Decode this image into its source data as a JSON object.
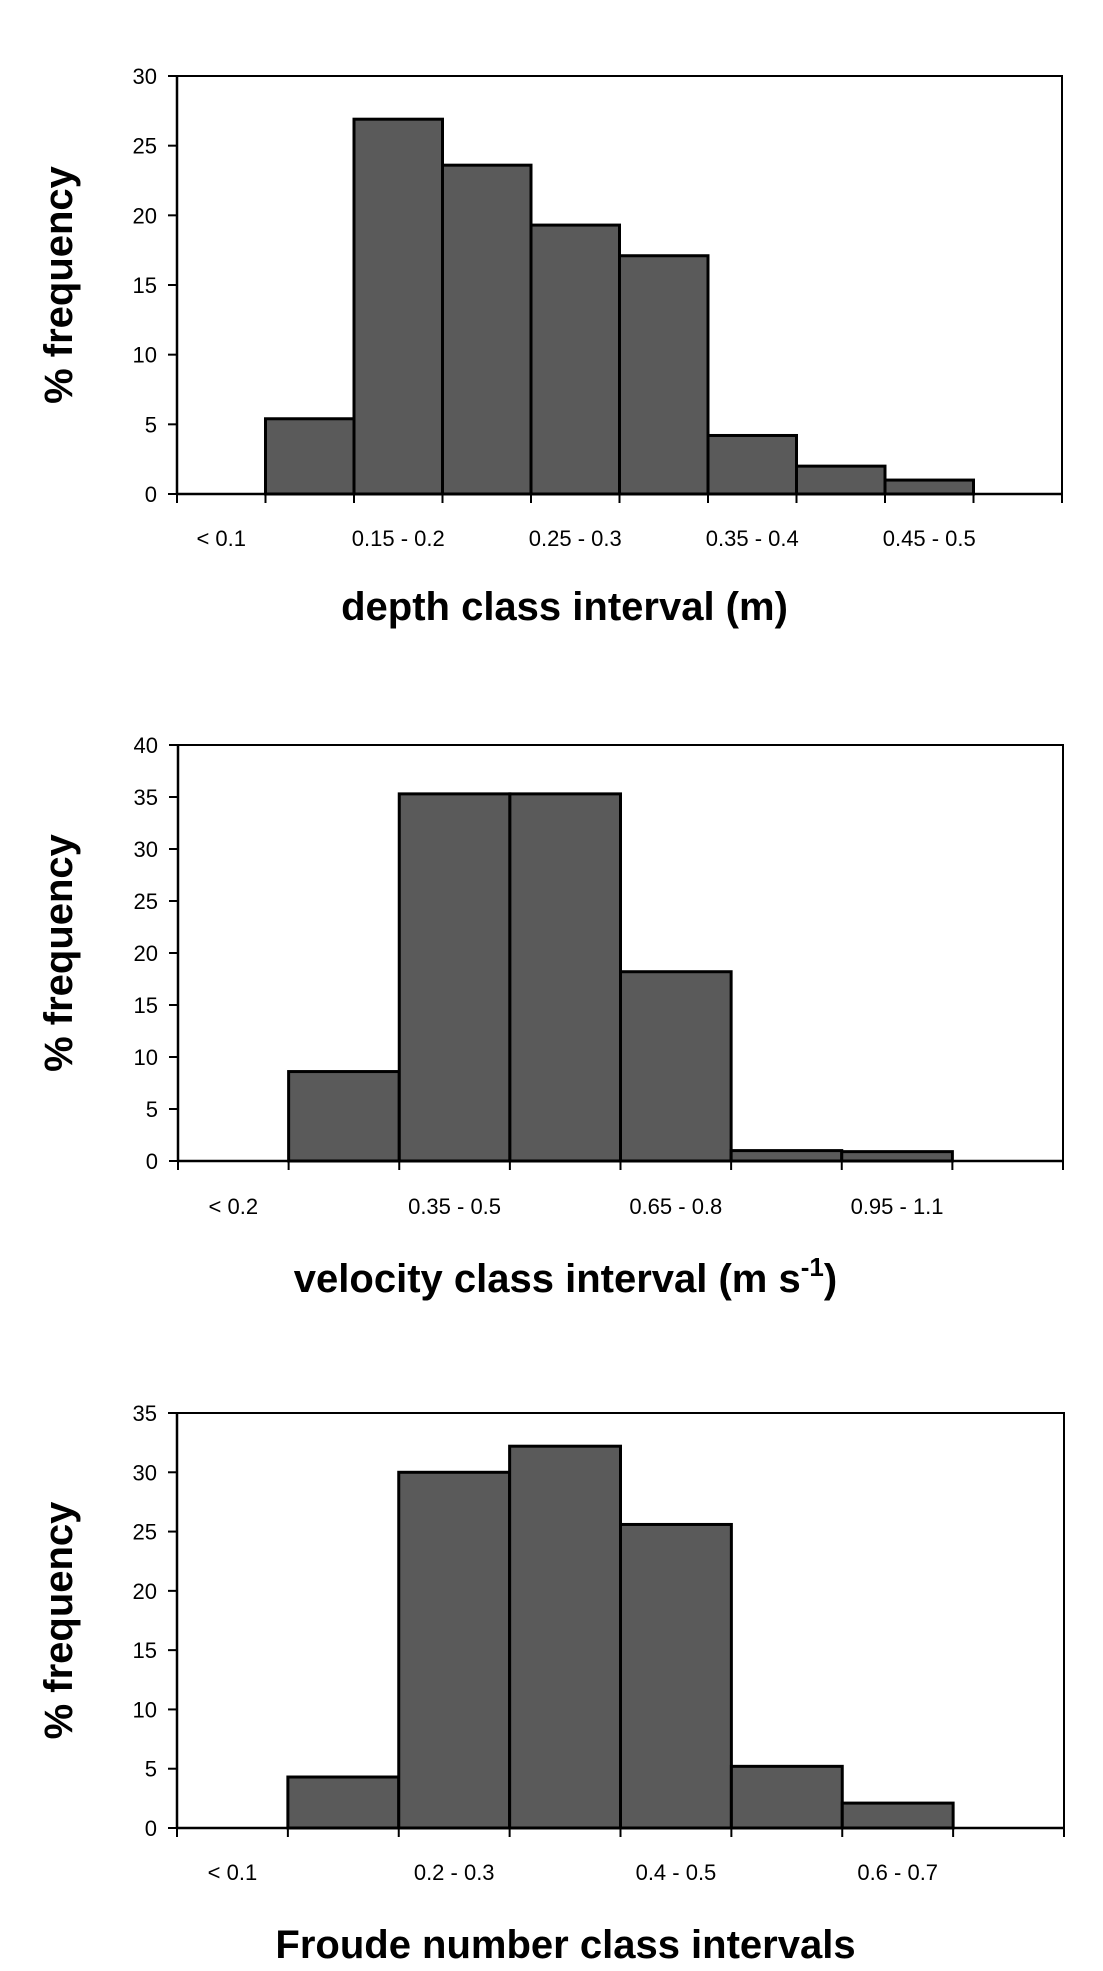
{
  "chart_data": [
    {
      "type": "bar",
      "categories": [
        "< 0.1",
        "0.1 - 0.15",
        "0.15 - 0.2",
        "0.2 - 0.25",
        "0.25 - 0.3",
        "0.3 - 0.35",
        "0.35 - 0.4",
        "0.4 - 0.45",
        "0.45 - 0.5"
      ],
      "tick_labels": [
        "< 0.1",
        "",
        "0.15 - 0.2",
        "",
        "0.25 - 0.3",
        "",
        "0.35 - 0.4",
        "",
        "0.45 - 0.5"
      ],
      "values": [
        0,
        5.4,
        26.9,
        23.6,
        19.3,
        17.1,
        4.2,
        2.0,
        1.0
      ],
      "title": "",
      "xlabel": "depth class interval (m)",
      "ylabel": "% frequency",
      "ylim": [
        0,
        30
      ],
      "yticks": [
        0,
        5,
        10,
        15,
        20,
        25,
        30
      ],
      "grid": false,
      "bar_color": "#5a5a5a"
    },
    {
      "type": "bar",
      "categories": [
        "< 0.2",
        "0.2 - 0.35",
        "0.35 - 0.5",
        "0.5 - 0.65",
        "0.65 - 0.8",
        "0.8 - 0.95",
        "0.95 - 1.1"
      ],
      "tick_labels": [
        "< 0.2",
        "",
        "0.35 - 0.5",
        "",
        "0.65 - 0.8",
        "",
        "0.95 - 1.1"
      ],
      "values": [
        0,
        8.6,
        35.3,
        35.3,
        18.2,
        1.0,
        0.9
      ],
      "title": "",
      "xlabel": "velocity class interval (m s",
      "xlabel_superscript": "-1",
      "xlabel_suffix": ")",
      "ylabel": "% frequency",
      "ylim": [
        0,
        40
      ],
      "yticks": [
        0,
        5,
        10,
        15,
        20,
        25,
        30,
        35,
        40
      ],
      "grid": false,
      "bar_color": "#5a5a5a"
    },
    {
      "type": "bar",
      "categories": [
        "< 0.1",
        "0.1 - 0.2",
        "0.2 - 0.3",
        "0.3 - 0.4",
        "0.4 - 0.5",
        "0.5 - 0.6",
        "0.6 - 0.7"
      ],
      "tick_labels": [
        "< 0.1",
        "",
        "0.2 - 0.3",
        "",
        "0.4 - 0.5",
        "",
        "0.6 - 0.7"
      ],
      "values": [
        0,
        4.3,
        30.0,
        32.2,
        25.6,
        5.2,
        2.1
      ],
      "title": "",
      "xlabel": "Froude number class intervals",
      "ylabel": "% frequency",
      "ylim": [
        0,
        35
      ],
      "yticks": [
        0,
        5,
        10,
        15,
        20,
        25,
        30,
        35
      ],
      "grid": false,
      "bar_color": "#5a5a5a"
    }
  ]
}
